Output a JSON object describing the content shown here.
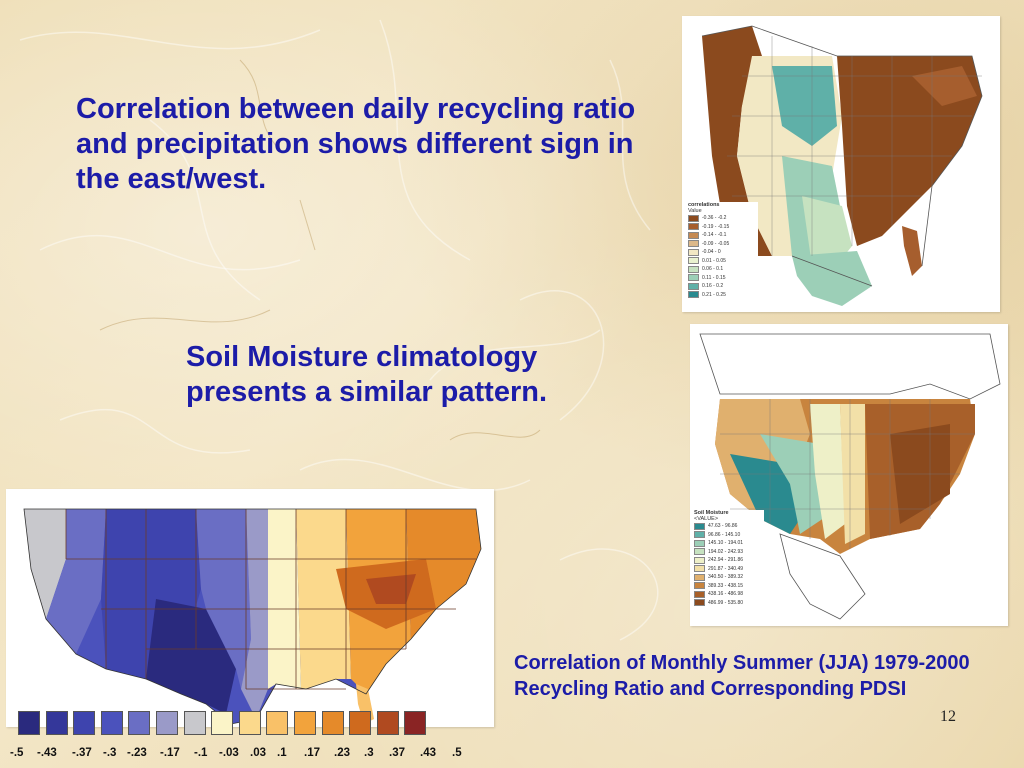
{
  "slide": {
    "text_1": "Correlation between daily recycling ratio and precipitation shows different sign in the east/west.",
    "text_2": "Soil Moisture climatology presents a similar pattern.",
    "text_3": "Correlation of Monthly Summer (JJA) 1979-2000 Recycling Ratio and Corresponding PDSI",
    "page_number": "12"
  },
  "map_top": {
    "legend_title": "correlations",
    "legend_subtitle": "Value",
    "legend": [
      {
        "label": "-0.36 - -0.2",
        "color": "#8b4a1e"
      },
      {
        "label": "-0.19 - -0.15",
        "color": "#a65e2e"
      },
      {
        "label": "-0.14 - -0.1",
        "color": "#c58a52"
      },
      {
        "label": "-0.09 - -0.05",
        "color": "#ddb98a"
      },
      {
        "label": "-0.04 - 0",
        "color": "#f2e8c4"
      },
      {
        "label": "0.01 - 0.05",
        "color": "#e9f2cf"
      },
      {
        "label": "0.06 - 0.1",
        "color": "#c6e2c0"
      },
      {
        "label": "0.11 - 0.15",
        "color": "#9ccfb7"
      },
      {
        "label": "0.16 - 0.2",
        "color": "#5fb0a8"
      },
      {
        "label": "0.21 - 0.25",
        "color": "#2a8a8f"
      }
    ]
  },
  "map_mid": {
    "legend_title": "Soil Moisture",
    "legend_subtitle": "<VALUE>",
    "legend": [
      {
        "label": "47.63 - 96.86",
        "color": "#2a8a8f"
      },
      {
        "label": "96.86 - 145.10",
        "color": "#5fb0a8"
      },
      {
        "label": "145.10 - 194.01",
        "color": "#9ccfb7"
      },
      {
        "label": "194.02 - 242.93",
        "color": "#c6e2c0"
      },
      {
        "label": "242.94 - 291.86",
        "color": "#eef0c8"
      },
      {
        "label": "291.87 - 340.49",
        "color": "#f2e0a8"
      },
      {
        "label": "340.50 - 389.32",
        "color": "#e0b06e"
      },
      {
        "label": "389.33 - 438.15",
        "color": "#c8843e"
      },
      {
        "label": "438.16 - 486.98",
        "color": "#a8602a"
      },
      {
        "label": "486.99 - 535.80",
        "color": "#8b4a1e"
      }
    ]
  },
  "scale": {
    "colors": [
      "#2a2a7e",
      "#34379a",
      "#3e44ae",
      "#4b52bc",
      "#6a6ec4",
      "#9a9ac8",
      "#c8c8cc",
      "#fbf4c8",
      "#fbd98c",
      "#f9c168",
      "#f2a33c",
      "#e58a2a",
      "#cf6a1e",
      "#b04a20",
      "#8a2424"
    ],
    "labels": [
      "-.5",
      "-.43",
      "-.37",
      "-.3",
      "-.23",
      "-.17",
      "-.1",
      "-.03",
      ".03",
      ".1",
      ".17",
      ".23",
      ".3",
      ".37",
      ".43",
      ".5"
    ]
  }
}
